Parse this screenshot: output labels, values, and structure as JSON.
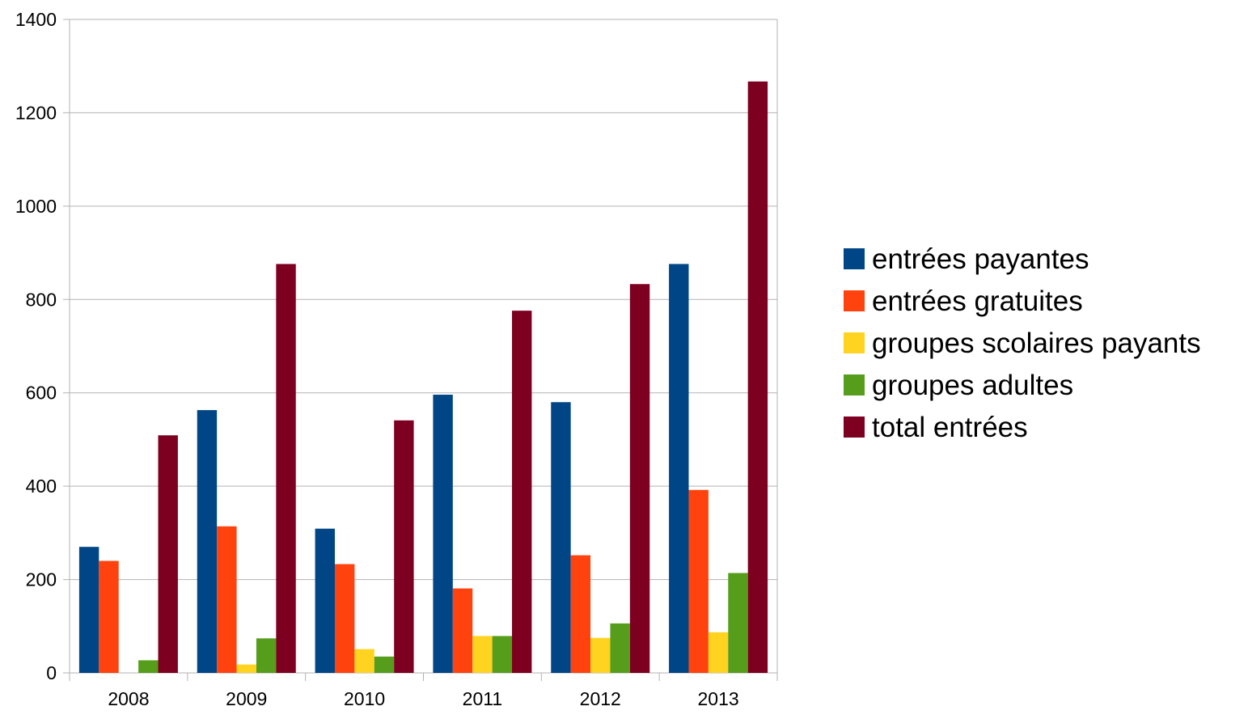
{
  "chart_data": {
    "type": "bar",
    "title": "",
    "xlabel": "",
    "ylabel": "",
    "categories": [
      "2008",
      "2009",
      "2010",
      "2011",
      "2012",
      "2013"
    ],
    "ylim": [
      0,
      1400
    ],
    "yticks": [
      0,
      200,
      400,
      600,
      800,
      1000,
      1200,
      1400
    ],
    "grid": "horizontal",
    "legend_position": "right",
    "series": [
      {
        "name": "entrées payantes",
        "color": "#004586",
        "values": [
          270,
          563,
          309,
          596,
          580,
          876
        ]
      },
      {
        "name": "entrées gratuites",
        "color": "#FF420E",
        "values": [
          240,
          314,
          233,
          181,
          252,
          392
        ]
      },
      {
        "name": "groupes scolaires payants",
        "color": "#FFD320",
        "values": [
          0,
          18,
          51,
          79,
          75,
          87
        ]
      },
      {
        "name": "groupes adultes",
        "color": "#579D1C",
        "values": [
          27,
          74,
          35,
          79,
          106,
          214
        ]
      },
      {
        "name": "total entrées",
        "color": "#7E0021",
        "values": [
          509,
          876,
          541,
          776,
          833,
          1267
        ]
      }
    ]
  }
}
